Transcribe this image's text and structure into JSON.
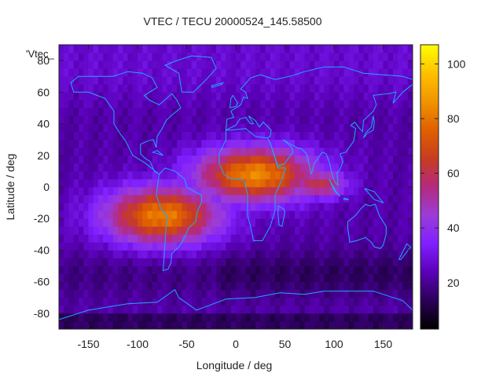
{
  "chart_data": {
    "type": "heatmap",
    "title": "VTEC / TECU 20000524_145.58500",
    "xlabel": "Longitude / deg",
    "ylabel": "Latitude / deg",
    "key_label": "'Vtec_",
    "xlim": [
      -180,
      180
    ],
    "ylim": [
      -90,
      90
    ],
    "x_ticks": [
      -150,
      -100,
      -50,
      0,
      50,
      100,
      150
    ],
    "y_ticks": [
      -80,
      -60,
      -40,
      -20,
      0,
      20,
      40,
      60,
      80
    ],
    "colorbar": {
      "min": 3,
      "max": 107,
      "ticks": [
        20,
        40,
        60,
        80,
        100
      ]
    },
    "colormap": [
      "#000000",
      "#2a0058",
      "#5a00b8",
      "#8020ff",
      "#9b3cd8",
      "#b42a80",
      "#c83c20",
      "#e06000",
      "#f09400",
      "#ffc000",
      "#ffff00"
    ],
    "coastline_color": "#20a8ff",
    "field": {
      "description_units": "TECU",
      "background": 22,
      "north_polar": 27,
      "south_band": {
        "lat": -55,
        "value": 14
      },
      "anomaly_peak": {
        "lon": 20,
        "lat": 8,
        "value": 84
      },
      "anomaly_west": {
        "lon": -75,
        "lat": -18,
        "value": 82
      },
      "anomaly_east": {
        "lon": 85,
        "lat": 2,
        "value": 62
      }
    }
  }
}
